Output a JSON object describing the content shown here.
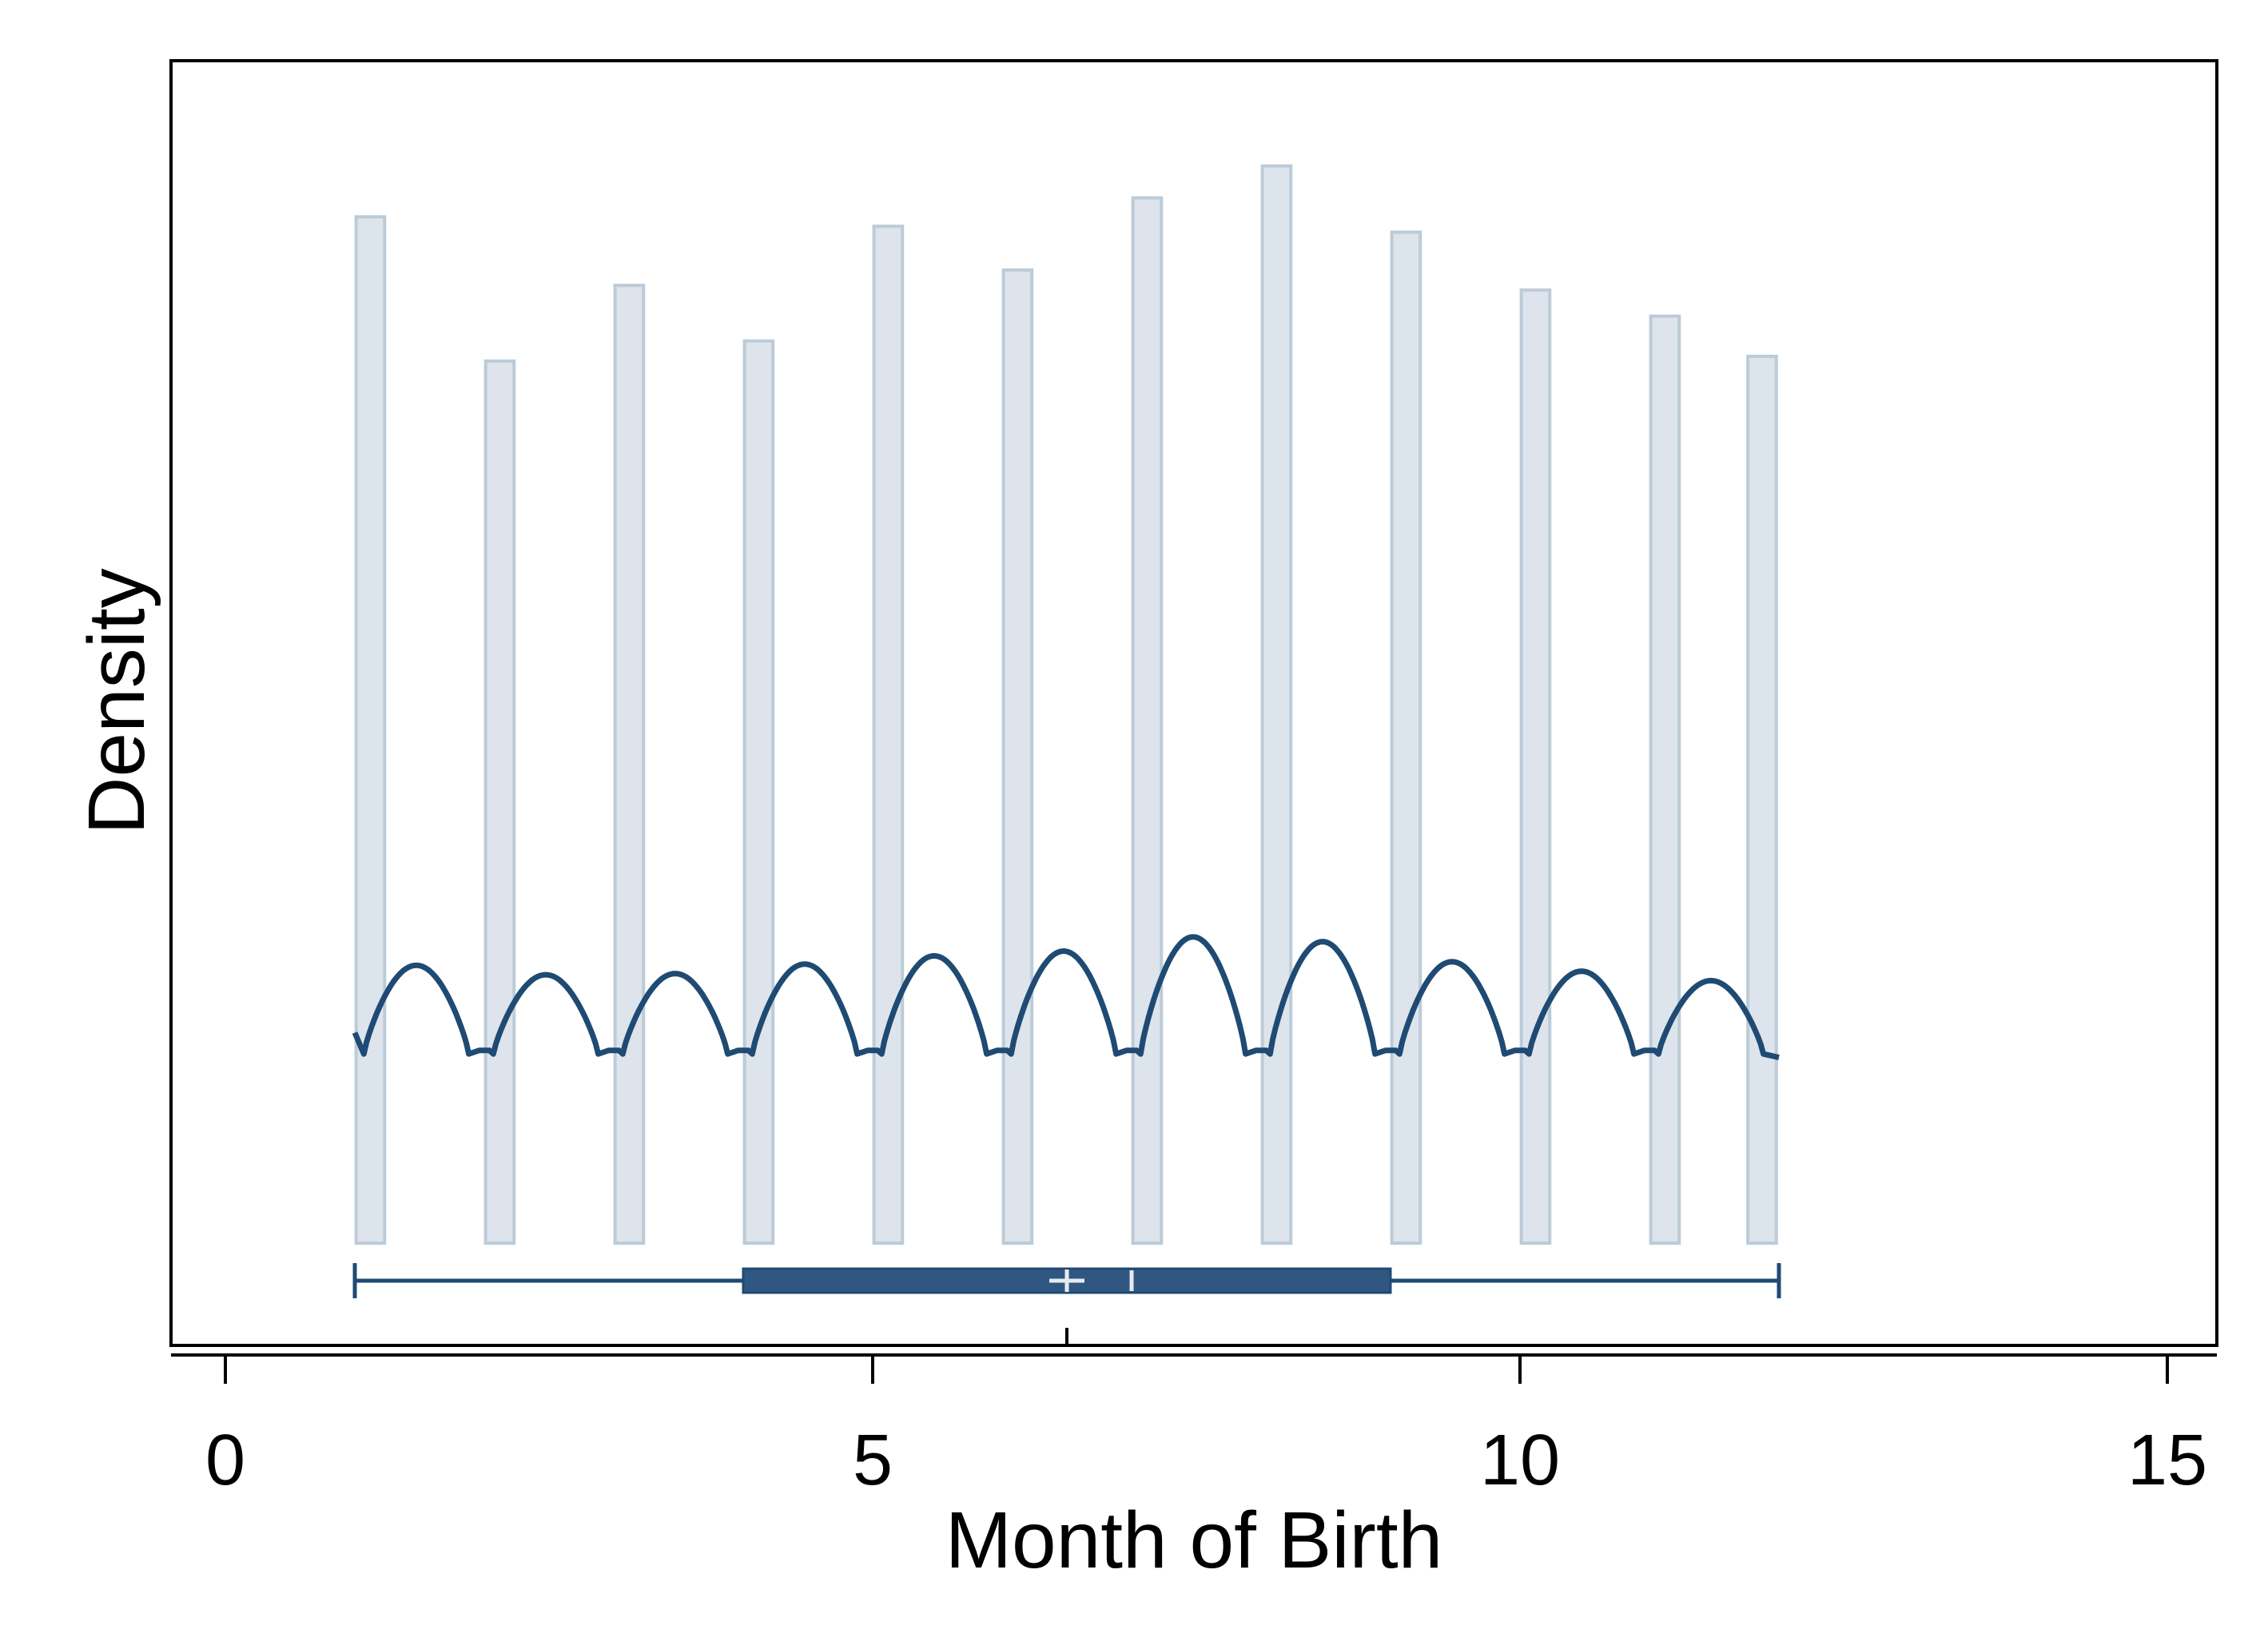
{
  "colors": {
    "bar_fill": "#dde4eb",
    "bar_stroke": "#bccbd8",
    "line": "#1f4a73",
    "box_fill": "#2f5781",
    "box_marker": "#e6ebf1",
    "axis": "#000000"
  },
  "chart_data": {
    "type": "bar",
    "title": "",
    "xlabel": "Month of Birth",
    "ylabel": "Density",
    "xlim": [
      -0.4,
      15.4
    ],
    "ylim": [
      0,
      1
    ],
    "xticks": [
      0,
      5,
      10,
      15
    ],
    "xtick_labels": [
      "0",
      "5",
      "10",
      "15"
    ],
    "y_tick_labels_shown": false,
    "grid": false,
    "legend": "none",
    "histogram": {
      "bar_width": 0.22,
      "bins": [
        {
          "x": 1.12,
          "density": 0.868
        },
        {
          "x": 2.12,
          "density": 0.746
        },
        {
          "x": 3.12,
          "density": 0.81
        },
        {
          "x": 4.12,
          "density": 0.763
        },
        {
          "x": 5.12,
          "density": 0.86
        },
        {
          "x": 6.12,
          "density": 0.823
        },
        {
          "x": 7.12,
          "density": 0.884
        },
        {
          "x": 8.12,
          "density": 0.911
        },
        {
          "x": 9.12,
          "density": 0.855
        },
        {
          "x": 10.12,
          "density": 0.806
        },
        {
          "x": 11.12,
          "density": 0.784
        },
        {
          "x": 11.87,
          "density": 0.75
        }
      ]
    },
    "kernel_density": {
      "bumps": [
        {
          "from": 1.0,
          "to": 2.0,
          "peak": 0.235
        },
        {
          "from": 2.0,
          "to": 3.0,
          "peak": 0.227
        },
        {
          "from": 3.0,
          "to": 4.0,
          "peak": 0.228
        },
        {
          "from": 4.0,
          "to": 5.0,
          "peak": 0.236
        },
        {
          "from": 5.0,
          "to": 6.0,
          "peak": 0.243
        },
        {
          "from": 6.0,
          "to": 7.0,
          "peak": 0.247
        },
        {
          "from": 7.0,
          "to": 8.0,
          "peak": 0.259
        },
        {
          "from": 8.0,
          "to": 9.0,
          "peak": 0.255
        },
        {
          "from": 9.0,
          "to": 10.0,
          "peak": 0.238
        },
        {
          "from": 10.0,
          "to": 11.0,
          "peak": 0.23
        },
        {
          "from": 11.0,
          "to": 12.0,
          "peak": 0.222
        }
      ],
      "trough": 0.16,
      "start": 0.178,
      "end": 0.157
    },
    "boxplot": {
      "min": 1,
      "q1": 4,
      "median": 7,
      "mean": 6.5,
      "q3": 9,
      "max": 12
    },
    "x_marker": 6.5
  }
}
